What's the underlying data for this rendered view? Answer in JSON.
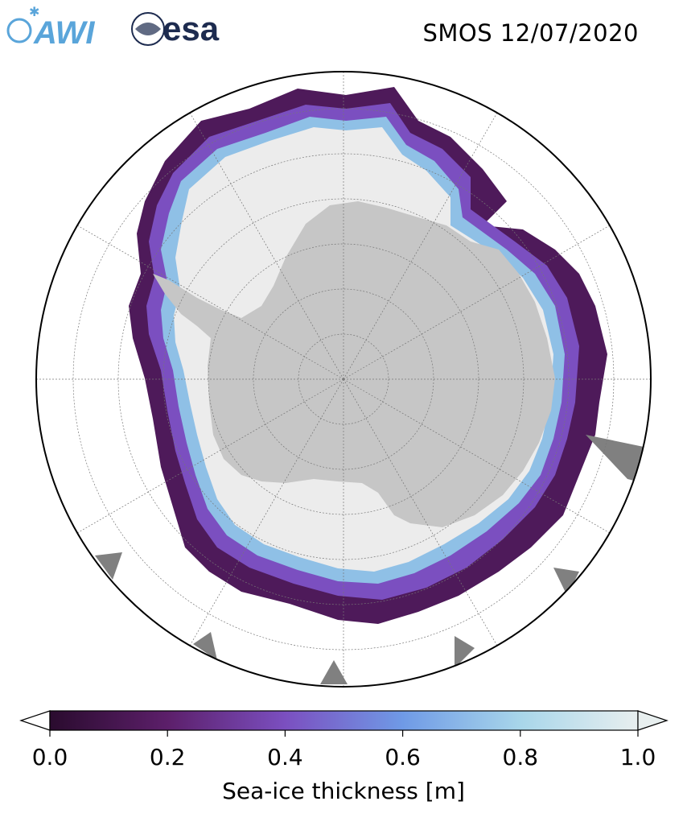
{
  "header": {
    "logo_awi": "AWI",
    "logo_esa": "esa",
    "title": "SMOS 12/07/2020"
  },
  "map": {
    "projection": "south-polar-stereographic",
    "region": "Antarctica",
    "graticule": "on",
    "colors": {
      "land": "#c6c6c6",
      "thick_ice": "#ececec",
      "no_data": "#808080",
      "ocean": "#ffffff",
      "graticule": "#777777"
    }
  },
  "colorbar": {
    "label": "Sea-ice thickness [m]",
    "min": 0.0,
    "max": 1.0,
    "extend": "both",
    "ticks": [
      "0.0",
      "0.2",
      "0.4",
      "0.6",
      "0.8",
      "1.0"
    ],
    "tick_values": [
      0.0,
      0.2,
      0.4,
      0.6,
      0.8,
      1.0
    ],
    "colormap_stops": [
      {
        "v": 0.0,
        "c": "#2a0b2e"
      },
      {
        "v": 0.2,
        "c": "#5c1f6a"
      },
      {
        "v": 0.4,
        "c": "#7b4fc0"
      },
      {
        "v": 0.6,
        "c": "#6f9ae6"
      },
      {
        "v": 0.8,
        "c": "#a8d6ea"
      },
      {
        "v": 1.0,
        "c": "#e8efef"
      }
    ]
  }
}
